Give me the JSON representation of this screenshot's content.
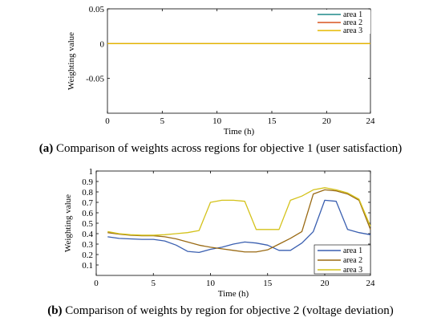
{
  "chart_data": [
    {
      "type": "line",
      "caption_tag": "(a)",
      "caption": "Comparison of weights across regions for objective 1 (user satisfaction)",
      "xlabel": "Time (h)",
      "ylabel": "Weighting value",
      "xlim": [
        0,
        24
      ],
      "ylim": [
        -0.1,
        0.05
      ],
      "xticks": [
        0,
        5,
        10,
        15,
        20,
        24
      ],
      "yticks": [
        0.05,
        0,
        -0.05
      ],
      "ytick_labels": [
        "0.05",
        "0",
        "-0.05"
      ],
      "grid": false,
      "legend": "top-right",
      "x": [
        0,
        24
      ],
      "series": [
        {
          "name": "area 1",
          "color": "#1f8a8a",
          "values": [
            0,
            0
          ]
        },
        {
          "name": "area 2",
          "color": "#d9531e",
          "values": [
            0,
            0
          ]
        },
        {
          "name": "area 3",
          "color": "#e6b800",
          "values": [
            0,
            0
          ]
        }
      ]
    },
    {
      "type": "line",
      "caption_tag": "(b)",
      "caption": "Comparison of weights by region for objective 2 (voltage deviation)",
      "xlabel": "Time (h)",
      "ylabel": "Weighting value",
      "xlim": [
        0,
        24
      ],
      "ylim": [
        0,
        1
      ],
      "xticks": [
        0,
        5,
        10,
        15,
        20,
        24
      ],
      "yticks": [
        0.1,
        0.2,
        0.3,
        0.4,
        0.5,
        0.6,
        0.7,
        0.8,
        0.9,
        1
      ],
      "ytick_labels": [
        "0.1",
        "0.2",
        "0.3",
        "0.4",
        "0.5",
        "0.6",
        "0.7",
        "0.8",
        "0.9",
        "1"
      ],
      "grid": false,
      "legend": "bottom-right",
      "x": [
        1,
        2,
        3,
        4,
        5,
        6,
        7,
        8,
        9,
        10,
        11,
        12,
        13,
        14,
        15,
        16,
        17,
        18,
        19,
        20,
        21,
        22,
        23,
        24
      ],
      "series": [
        {
          "name": "area 1",
          "color": "#3a5fb0",
          "values": [
            0.37,
            0.355,
            0.35,
            0.345,
            0.345,
            0.33,
            0.29,
            0.23,
            0.22,
            0.25,
            0.27,
            0.3,
            0.32,
            0.31,
            0.29,
            0.24,
            0.24,
            0.31,
            0.42,
            0.72,
            0.71,
            0.44,
            0.41,
            0.39
          ]
        },
        {
          "name": "area 2",
          "color": "#9a6a14",
          "values": [
            0.41,
            0.395,
            0.385,
            0.38,
            0.38,
            0.37,
            0.35,
            0.32,
            0.29,
            0.27,
            0.255,
            0.24,
            0.225,
            0.225,
            0.245,
            0.3,
            0.355,
            0.42,
            0.78,
            0.82,
            0.81,
            0.78,
            0.72,
            0.44
          ]
        },
        {
          "name": "area 3",
          "color": "#d4c21a",
          "values": [
            0.42,
            0.4,
            0.39,
            0.385,
            0.385,
            0.39,
            0.4,
            0.41,
            0.43,
            0.7,
            0.72,
            0.72,
            0.71,
            0.44,
            0.44,
            0.44,
            0.72,
            0.76,
            0.82,
            0.84,
            0.82,
            0.79,
            0.73,
            0.47
          ]
        }
      ]
    }
  ]
}
